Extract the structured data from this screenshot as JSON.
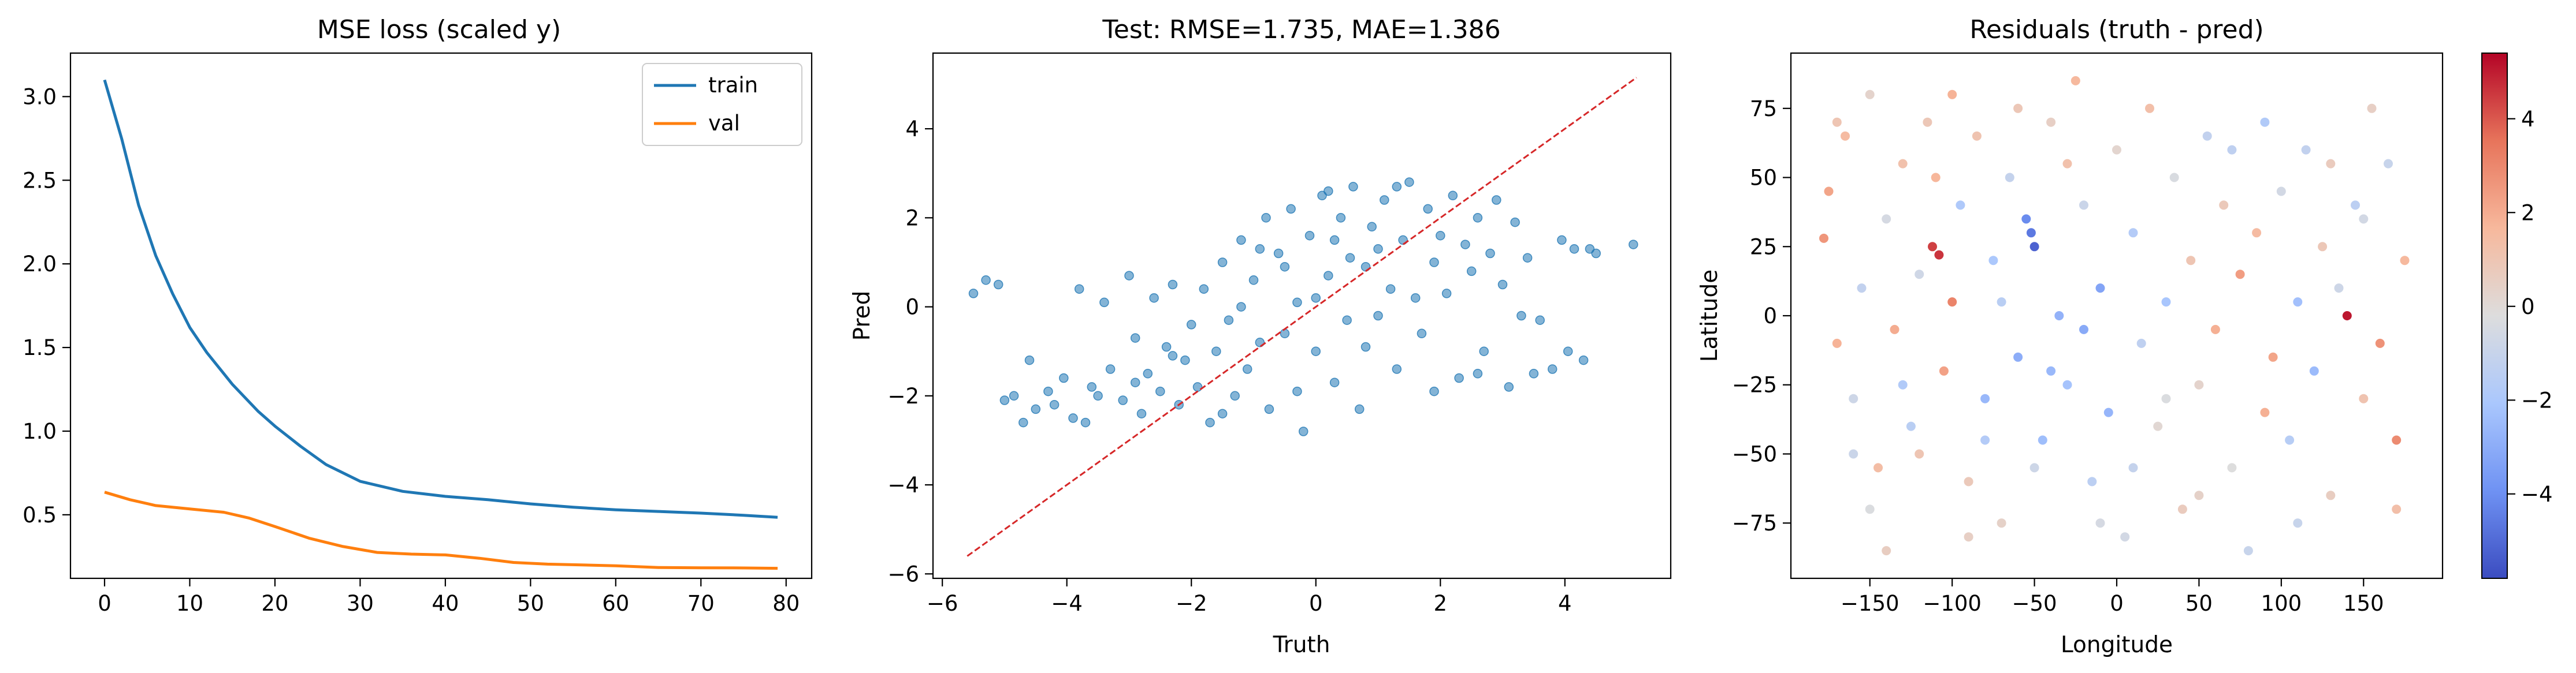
{
  "chart_data": [
    {
      "type": "line",
      "title": "MSE loss (scaled y)",
      "xlabel": "",
      "ylabel": "",
      "xlim": [
        -4,
        83
      ],
      "ylim": [
        0.12,
        3.26
      ],
      "xticks": [
        0,
        10,
        20,
        30,
        40,
        50,
        60,
        70,
        80
      ],
      "yticks": [
        0.5,
        1.0,
        1.5,
        2.0,
        2.5,
        3.0
      ],
      "ytick_labels": [
        "0.5",
        "1.0",
        "1.5",
        "2.0",
        "2.5",
        "3.0"
      ],
      "legend": "top-right",
      "grid": false,
      "series": [
        {
          "name": "train",
          "color": "#1f77b4",
          "x": [
            0,
            2,
            4,
            6,
            8,
            10,
            12,
            15,
            18,
            20,
            23,
            26,
            30,
            35,
            40,
            45,
            50,
            55,
            60,
            65,
            70,
            75,
            79
          ],
          "y": [
            3.1,
            2.75,
            2.35,
            2.05,
            1.82,
            1.62,
            1.47,
            1.28,
            1.12,
            1.03,
            0.91,
            0.8,
            0.7,
            0.64,
            0.61,
            0.59,
            0.565,
            0.545,
            0.53,
            0.52,
            0.51,
            0.497,
            0.485
          ]
        },
        {
          "name": "val",
          "color": "#ff7f0e",
          "x": [
            0,
            3,
            6,
            10,
            14,
            17,
            20,
            24,
            28,
            32,
            36,
            40,
            44,
            48,
            52,
            56,
            60,
            65,
            70,
            75,
            79
          ],
          "y": [
            0.635,
            0.59,
            0.555,
            0.535,
            0.515,
            0.48,
            0.43,
            0.36,
            0.31,
            0.275,
            0.265,
            0.26,
            0.24,
            0.215,
            0.205,
            0.2,
            0.195,
            0.185,
            0.183,
            0.182,
            0.18
          ]
        }
      ]
    },
    {
      "type": "scatter",
      "title": "Test: RMSE=1.735, MAE=1.386",
      "xlabel": "Truth",
      "ylabel": "Pred",
      "xlim": [
        -6.15,
        5.7
      ],
      "ylim": [
        -6.1,
        5.7
      ],
      "xticks": [
        -6,
        -4,
        -2,
        0,
        2,
        4
      ],
      "yticks": [
        -6,
        -4,
        -2,
        0,
        2,
        4
      ],
      "point_color": "#1f77b4",
      "reference_line": {
        "color": "#d62728",
        "from": [
          -5.6,
          -5.6
        ],
        "to": [
          5.15,
          5.15
        ],
        "style": "dashed"
      },
      "points": [
        [
          -5.5,
          0.3
        ],
        [
          -5.3,
          0.6
        ],
        [
          -5.1,
          0.5
        ],
        [
          -5.0,
          -2.1
        ],
        [
          -4.85,
          -2.0
        ],
        [
          -4.7,
          -2.6
        ],
        [
          -4.5,
          -2.3
        ],
        [
          -4.3,
          -1.9
        ],
        [
          -4.2,
          -2.2
        ],
        [
          -4.05,
          -1.6
        ],
        [
          -3.9,
          -2.5
        ],
        [
          -3.8,
          0.4
        ],
        [
          -3.6,
          -1.8
        ],
        [
          -3.5,
          -2.0
        ],
        [
          -3.4,
          0.1
        ],
        [
          -3.3,
          -1.4
        ],
        [
          -3.1,
          -2.1
        ],
        [
          -3.0,
          0.7
        ],
        [
          -2.9,
          -1.7
        ],
        [
          -2.8,
          -2.4
        ],
        [
          -2.7,
          -1.5
        ],
        [
          -2.6,
          0.2
        ],
        [
          -2.5,
          -1.9
        ],
        [
          -2.4,
          -0.9
        ],
        [
          -2.3,
          0.5
        ],
        [
          -2.2,
          -2.2
        ],
        [
          -2.1,
          -1.2
        ],
        [
          -2.0,
          -0.4
        ],
        [
          -1.9,
          -1.8
        ],
        [
          -1.8,
          0.4
        ],
        [
          -1.7,
          -2.6
        ],
        [
          -1.6,
          -1.0
        ],
        [
          -1.5,
          1.0
        ],
        [
          -1.4,
          -0.3
        ],
        [
          -1.3,
          -2.0
        ],
        [
          -1.2,
          1.5
        ],
        [
          -1.1,
          -1.4
        ],
        [
          -1.0,
          0.6
        ],
        [
          -0.9,
          -0.8
        ],
        [
          -0.8,
          2.0
        ],
        [
          -0.75,
          -2.3
        ],
        [
          -0.6,
          1.2
        ],
        [
          -0.5,
          -0.6
        ],
        [
          -0.4,
          2.2
        ],
        [
          -0.3,
          0.1
        ],
        [
          -0.2,
          -2.8
        ],
        [
          -0.1,
          1.6
        ],
        [
          0.0,
          -1.0
        ],
        [
          0.1,
          2.5
        ],
        [
          0.2,
          0.7
        ],
        [
          0.3,
          -1.7
        ],
        [
          0.4,
          2.0
        ],
        [
          0.5,
          -0.3
        ],
        [
          0.55,
          1.1
        ],
        [
          0.6,
          2.7
        ],
        [
          0.7,
          -2.3
        ],
        [
          0.8,
          0.9
        ],
        [
          0.9,
          1.8
        ],
        [
          1.0,
          -0.2
        ],
        [
          1.1,
          2.4
        ],
        [
          1.2,
          0.4
        ],
        [
          1.3,
          -1.4
        ],
        [
          1.4,
          1.5
        ],
        [
          1.5,
          2.8
        ],
        [
          1.6,
          0.2
        ],
        [
          1.7,
          -0.6
        ],
        [
          1.8,
          2.2
        ],
        [
          1.9,
          1.0
        ],
        [
          2.0,
          1.6
        ],
        [
          2.1,
          0.3
        ],
        [
          2.2,
          2.5
        ],
        [
          2.3,
          -1.6
        ],
        [
          2.4,
          1.4
        ],
        [
          2.5,
          0.8
        ],
        [
          2.6,
          2.0
        ],
        [
          2.7,
          -1.0
        ],
        [
          2.8,
          1.2
        ],
        [
          2.9,
          2.4
        ],
        [
          3.0,
          0.5
        ],
        [
          3.1,
          -1.8
        ],
        [
          3.2,
          1.9
        ],
        [
          3.3,
          -0.2
        ],
        [
          3.4,
          1.1
        ],
        [
          3.5,
          -1.5
        ],
        [
          3.6,
          -0.3
        ],
        [
          3.8,
          -1.4
        ],
        [
          3.95,
          1.5
        ],
        [
          4.05,
          -1.0
        ],
        [
          4.15,
          1.3
        ],
        [
          4.3,
          -1.2
        ],
        [
          4.4,
          1.3
        ],
        [
          4.5,
          1.2
        ],
        [
          5.1,
          1.4
        ],
        [
          -4.6,
          -1.2
        ],
        [
          -3.7,
          -2.6
        ],
        [
          -2.9,
          -0.7
        ],
        [
          -1.5,
          -2.4
        ],
        [
          -0.9,
          1.3
        ],
        [
          -0.3,
          -1.9
        ],
        [
          0.2,
          2.6
        ],
        [
          0.8,
          -0.9
        ],
        [
          1.3,
          2.7
        ],
        [
          1.9,
          -1.9
        ],
        [
          2.6,
          -1.5
        ],
        [
          -0.5,
          0.9
        ],
        [
          0.3,
          1.5
        ],
        [
          1.0,
          1.3
        ],
        [
          -1.2,
          0.0
        ],
        [
          -2.3,
          -1.1
        ],
        [
          0.0,
          0.2
        ]
      ]
    },
    {
      "type": "scatter",
      "title": "Residuals (truth - pred)",
      "xlabel": "Longitude",
      "ylabel": "Latitude",
      "xlim": [
        -198,
        198
      ],
      "ylim": [
        -95,
        95
      ],
      "xticks": [
        -150,
        -100,
        -50,
        0,
        50,
        100,
        150
      ],
      "yticks": [
        -75,
        -50,
        -25,
        0,
        25,
        50,
        75
      ],
      "colorbar": {
        "cmap": "coolwarm",
        "vmin": -5.8,
        "vmax": 5.4,
        "ticks": [
          -4,
          -2,
          0,
          2,
          4
        ],
        "colors": [
          "#3b4cc0",
          "#6f92f3",
          "#aac7fd",
          "#dddddd",
          "#f7b89c",
          "#e7745b",
          "#b40426"
        ]
      },
      "points": [
        [
          -178,
          28,
          2.6
        ],
        [
          -175,
          45,
          2.2
        ],
        [
          -170,
          -10,
          1.8
        ],
        [
          -165,
          65,
          1.5
        ],
        [
          -160,
          -30,
          -0.8
        ],
        [
          -155,
          10,
          -1.2
        ],
        [
          -150,
          80,
          0.3
        ],
        [
          -145,
          -55,
          1.4
        ],
        [
          -140,
          35,
          -0.5
        ],
        [
          -135,
          -5,
          2.0
        ],
        [
          -130,
          55,
          1.2
        ],
        [
          -125,
          -40,
          -1.5
        ],
        [
          -120,
          15,
          -0.7
        ],
        [
          -115,
          70,
          0.9
        ],
        [
          -112,
          25,
          4.4
        ],
        [
          -108,
          22,
          4.6
        ],
        [
          -105,
          -20,
          2.3
        ],
        [
          -100,
          5,
          3.1
        ],
        [
          -95,
          40,
          -1.9
        ],
        [
          -90,
          -60,
          0.8
        ],
        [
          -85,
          65,
          1.1
        ],
        [
          -80,
          -30,
          -2.6
        ],
        [
          -75,
          20,
          -2.0
        ],
        [
          -70,
          -75,
          0.4
        ],
        [
          -65,
          50,
          -1.1
        ],
        [
          -60,
          -15,
          -3.0
        ],
        [
          -55,
          35,
          -4.1
        ],
        [
          -52,
          30,
          -4.6
        ],
        [
          -50,
          25,
          -5.2
        ],
        [
          -45,
          -45,
          -2.4
        ],
        [
          -40,
          70,
          0.5
        ],
        [
          -35,
          0,
          -2.8
        ],
        [
          -30,
          -25,
          -2.2
        ],
        [
          -25,
          85,
          1.6
        ],
        [
          -20,
          40,
          -0.9
        ],
        [
          -15,
          -60,
          -1.4
        ],
        [
          -10,
          10,
          -3.3
        ],
        [
          -5,
          -35,
          -2.7
        ],
        [
          0,
          60,
          0.2
        ],
        [
          5,
          -80,
          -0.6
        ],
        [
          10,
          30,
          -1.7
        ],
        [
          15,
          -10,
          -1.3
        ],
        [
          20,
          75,
          1.3
        ],
        [
          25,
          -40,
          0.1
        ],
        [
          30,
          5,
          -2.1
        ],
        [
          35,
          50,
          -0.4
        ],
        [
          40,
          -70,
          0.7
        ],
        [
          45,
          20,
          1.0
        ],
        [
          50,
          -25,
          0.3
        ],
        [
          55,
          65,
          -1.2
        ],
        [
          60,
          -5,
          1.9
        ],
        [
          65,
          40,
          0.8
        ],
        [
          70,
          -55,
          -0.2
        ],
        [
          75,
          15,
          2.4
        ],
        [
          80,
          -85,
          -1.0
        ],
        [
          85,
          30,
          1.5
        ],
        [
          90,
          70,
          -1.8
        ],
        [
          95,
          -15,
          2.2
        ],
        [
          100,
          45,
          -0.6
        ],
        [
          105,
          -45,
          -1.6
        ],
        [
          110,
          5,
          -2.3
        ],
        [
          115,
          60,
          -1.2
        ],
        [
          120,
          -20,
          -2.5
        ],
        [
          125,
          25,
          0.9
        ],
        [
          130,
          -65,
          0.6
        ],
        [
          135,
          10,
          -0.8
        ],
        [
          140,
          0,
          5.1
        ],
        [
          145,
          40,
          -1.4
        ],
        [
          150,
          -30,
          1.1
        ],
        [
          155,
          75,
          0.5
        ],
        [
          160,
          -10,
          2.7
        ],
        [
          165,
          55,
          -1.0
        ],
        [
          170,
          -45,
          2.9
        ],
        [
          175,
          20,
          1.6
        ],
        [
          -170,
          70,
          1.0
        ],
        [
          -150,
          -70,
          -0.3
        ],
        [
          -130,
          -25,
          -1.8
        ],
        [
          -110,
          50,
          1.7
        ],
        [
          -90,
          -80,
          0.5
        ],
        [
          -70,
          5,
          -1.5
        ],
        [
          -50,
          -55,
          -0.8
        ],
        [
          -30,
          55,
          1.2
        ],
        [
          -10,
          -75,
          -0.5
        ],
        [
          10,
          -55,
          -1.1
        ],
        [
          30,
          -30,
          -0.3
        ],
        [
          50,
          -65,
          0.4
        ],
        [
          70,
          60,
          -1.3
        ],
        [
          90,
          -35,
          1.9
        ],
        [
          110,
          -75,
          -1.0
        ],
        [
          130,
          55,
          0.7
        ],
        [
          150,
          35,
          -0.6
        ],
        [
          170,
          -70,
          1.3
        ],
        [
          -160,
          -50,
          -0.9
        ],
        [
          -140,
          -85,
          0.6
        ],
        [
          -120,
          -50,
          1.0
        ],
        [
          -100,
          80,
          1.8
        ],
        [
          -80,
          -45,
          -1.7
        ],
        [
          -60,
          75,
          0.9
        ],
        [
          -40,
          -20,
          -2.6
        ],
        [
          -20,
          -5,
          -3.1
        ]
      ]
    }
  ]
}
